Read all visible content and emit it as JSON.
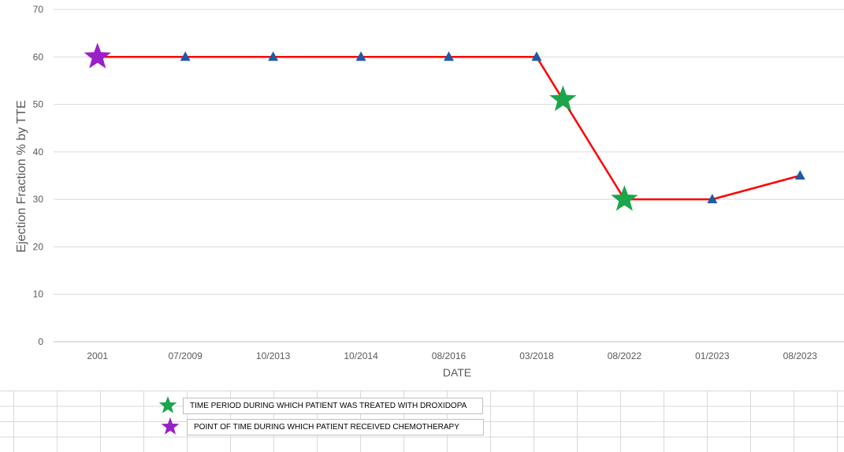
{
  "chart_data": {
    "type": "line",
    "categories": [
      "2001",
      "07/2009",
      "10/2013",
      "10/2014",
      "08/2016",
      "03/2018",
      "08/2022",
      "01/2023",
      "08/2023"
    ],
    "series": [
      {
        "values": [
          60,
          60,
          60,
          60,
          60,
          60,
          30,
          30,
          35
        ],
        "color": "#ff0000",
        "marker": "triangle",
        "marker_color": "#1f5aa6"
      }
    ],
    "extra_points": [
      {
        "position": 5.3,
        "value": 51
      }
    ],
    "annotations": [
      {
        "at": 0,
        "value": 60,
        "marker": "purple-star"
      },
      {
        "at": 5.3,
        "value": 51,
        "marker": "green-star"
      },
      {
        "at": 6,
        "value": 30,
        "marker": "green-star"
      }
    ],
    "xlabel": "DATE",
    "ylabel": "Ejection Fraction % by  TTE",
    "ylim": [
      0,
      70
    ],
    "yticks": [
      0,
      10,
      20,
      30,
      40,
      50,
      60,
      70
    ],
    "grid": true
  },
  "legend": {
    "items": [
      {
        "icon": "green-star-icon",
        "color": "#1aa64a",
        "label": "TIME PERIOD DURING WHICH PATIENT WAS TREATED WITH DROXIDOPA"
      },
      {
        "icon": "purple-star-icon",
        "color": "#9b1fc9",
        "label": "POINT OF TIME DURING WHICH PATIENT RECEIVED CHEMOTHERAPY"
      }
    ]
  }
}
